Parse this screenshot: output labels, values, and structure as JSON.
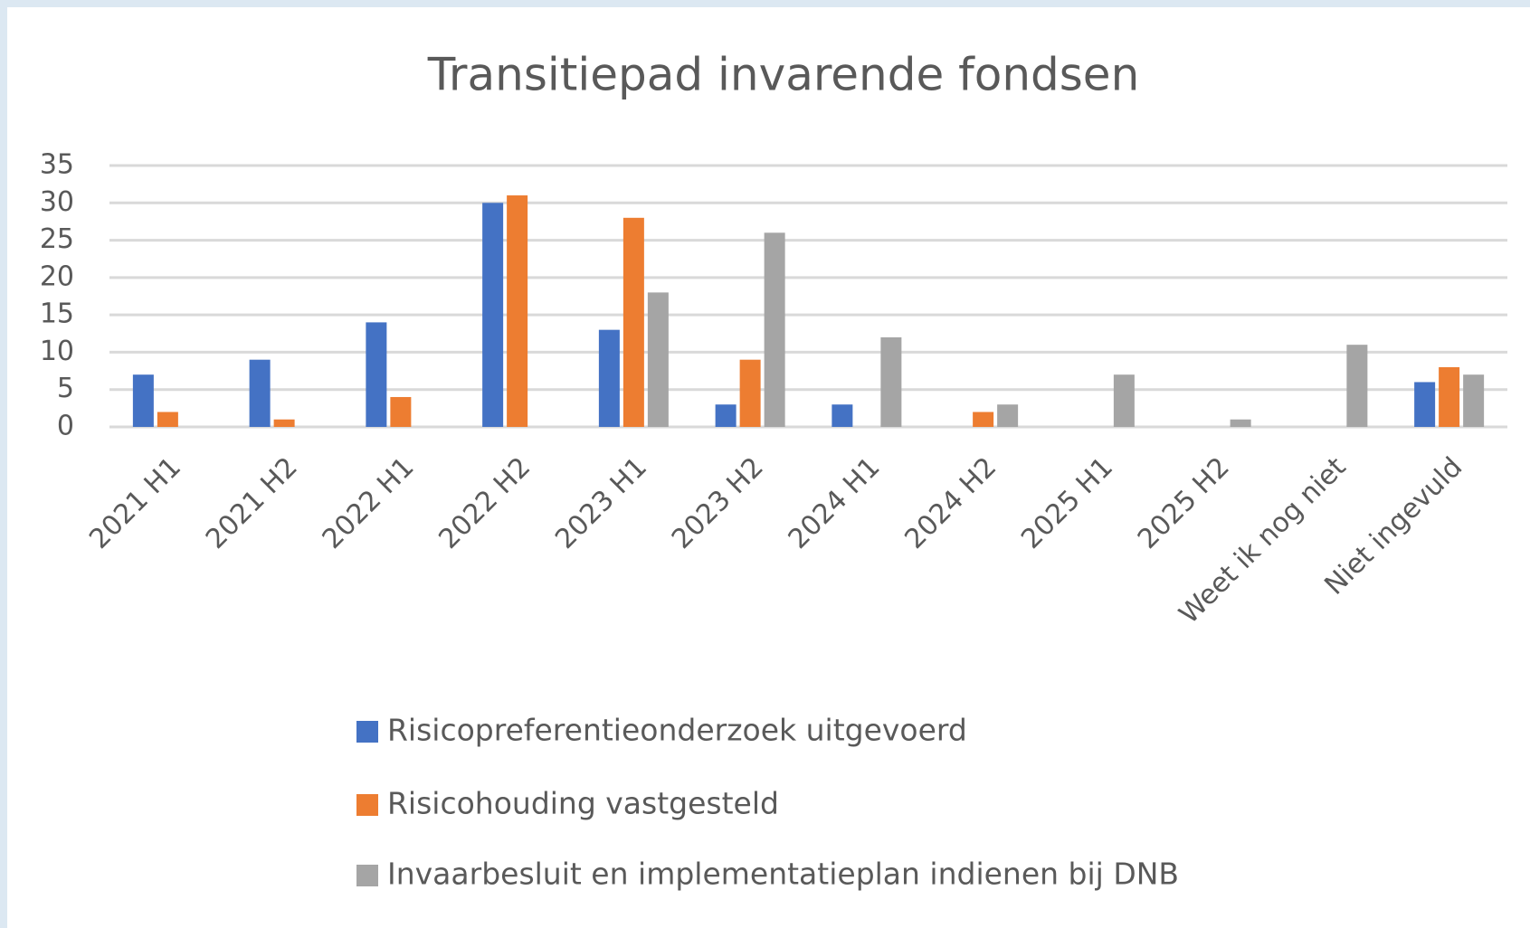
{
  "chart_data": {
    "type": "bar",
    "title": "Transitiepad invarende fondsen",
    "categories": [
      "2021 H1",
      "2021 H2",
      "2022 H1",
      "2022 H2",
      "2023 H1",
      "2023 H2",
      "2024 H1",
      "2024 H2",
      "2025 H1",
      "2025 H2",
      "Weet ik nog niet",
      "Niet ingevuld"
    ],
    "series": [
      {
        "name": "Risicopreferentieonderzoek uitgevoerd",
        "color": "#4472c4",
        "values": [
          7,
          9,
          14,
          30,
          13,
          3,
          3,
          0,
          0,
          0,
          0,
          6
        ]
      },
      {
        "name": "Risicohouding vastgesteld",
        "color": "#ed7d31",
        "values": [
          2,
          1,
          4,
          31,
          28,
          9,
          0,
          2,
          0,
          0,
          0,
          8
        ]
      },
      {
        "name": "Invaarbesluit en implementatieplan indienen bij DNB",
        "color": "#a5a5a5",
        "values": [
          0,
          0,
          0,
          0,
          18,
          26,
          12,
          3,
          7,
          1,
          11,
          7
        ]
      }
    ],
    "ylim": [
      0,
      35
    ],
    "yticks": [
      0,
      5,
      10,
      15,
      20,
      25,
      30,
      35
    ],
    "grid": true,
    "legend": "bottom"
  }
}
